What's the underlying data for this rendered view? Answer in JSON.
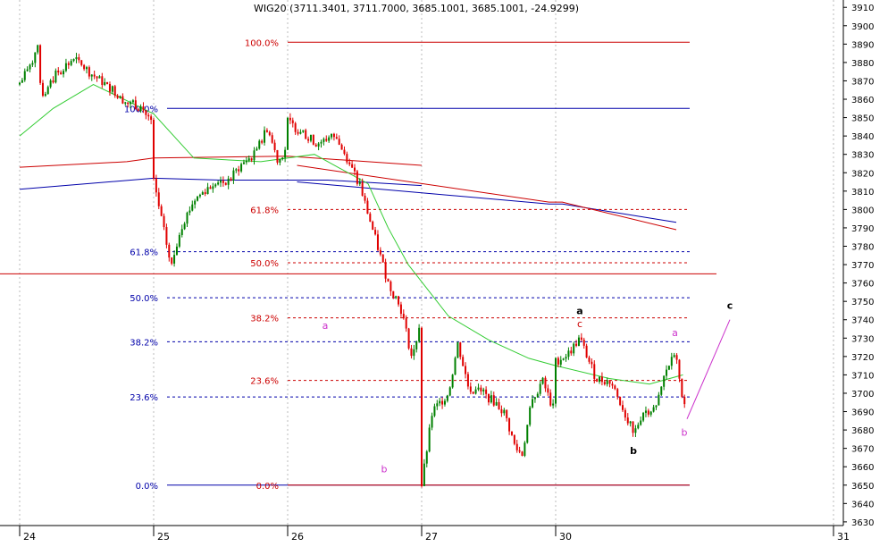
{
  "chart_data": {
    "type": "candlestick",
    "title": "WIG20 (3711.3401, 3711.7000, 3685.1001, 3685.1001, -24.9299)",
    "xlabel": "",
    "ylabel": "",
    "ylim": [
      3628,
      3914
    ],
    "y_ticks": [
      3630,
      3640,
      3650,
      3660,
      3670,
      3680,
      3690,
      3700,
      3710,
      3720,
      3730,
      3740,
      3750,
      3760,
      3770,
      3780,
      3790,
      3800,
      3810,
      3820,
      3830,
      3840,
      3850,
      3860,
      3870,
      3880,
      3890,
      3900,
      3910
    ],
    "day_labels": [
      "24",
      "25",
      "26",
      "27",
      "30",
      "31"
    ],
    "grid": true,
    "colors": {
      "up": "#008000",
      "down": "#e00000",
      "blue": "#0000aa",
      "red": "#cc0000",
      "ma": "#33cc33",
      "wave": "#cc33cc"
    },
    "moving_averages": [
      {
        "color": "#cc0000",
        "points": [
          [
            0,
            3823
          ],
          [
            0.8,
            3826
          ],
          [
            1,
            3828
          ],
          [
            2,
            3829
          ],
          [
            2.6,
            3826
          ],
          [
            3,
            3824
          ]
        ]
      },
      {
        "color": "#0000aa",
        "points": [
          [
            0,
            3811
          ],
          [
            1,
            3817
          ],
          [
            1.5,
            3816
          ],
          [
            2.3,
            3816
          ],
          [
            3,
            3813
          ]
        ]
      },
      {
        "color": "#33cc33",
        "points": [
          [
            0,
            3840
          ],
          [
            0.25,
            3855
          ],
          [
            0.55,
            3868
          ],
          [
            0.75,
            3861
          ],
          [
            1,
            3852
          ],
          [
            1.3,
            3828
          ],
          [
            1.8,
            3826
          ],
          [
            2.2,
            3830
          ],
          [
            2.6,
            3814
          ],
          [
            2.75,
            3790
          ],
          [
            2.9,
            3770
          ],
          [
            3.2,
            3742
          ],
          [
            3.5,
            3729
          ],
          [
            3.8,
            3719
          ],
          [
            4,
            3715
          ],
          [
            4.4,
            3708
          ],
          [
            4.7,
            3705
          ],
          [
            4.95,
            3710
          ]
        ]
      }
    ],
    "fib_sets": [
      {
        "color": "#0000aa",
        "x_range": [
          1.1,
          5.0
        ],
        "label_x": 1.0,
        "levels": [
          {
            "label": "100.0%",
            "price": 3855
          },
          {
            "label": "61.8%",
            "price": 3777
          },
          {
            "label": "50.0%",
            "price": 3752
          },
          {
            "label": "38.2%",
            "price": 3728
          },
          {
            "label": "23.6%",
            "price": 3698
          },
          {
            "label": "0.0%",
            "price": 3650
          }
        ]
      },
      {
        "color": "#cc0000",
        "x_range": [
          2.0,
          5.0
        ],
        "label_x": 1.95,
        "levels": [
          {
            "label": "100.0%",
            "price": 3891
          },
          {
            "label": "61.8%",
            "price": 3800
          },
          {
            "label": "50.0%",
            "price": 3771
          },
          {
            "label": "38.2%",
            "price": 3741
          },
          {
            "label": "23.6%",
            "price": 3707
          },
          {
            "label": "0.0%",
            "price": 3650
          }
        ]
      }
    ],
    "lines": [
      {
        "color": "#cc0000",
        "points": [
          [
            -1,
            3765
          ],
          [
            5.2,
            3765
          ]
        ]
      },
      {
        "color": "#0000aa",
        "points": [
          [
            2.07,
            3815
          ],
          [
            3.95,
            3803
          ],
          [
            4.05,
            3803
          ],
          [
            4.9,
            3793
          ]
        ]
      },
      {
        "color": "#cc0000",
        "points": [
          [
            2.07,
            3824
          ],
          [
            3.95,
            3804
          ],
          [
            4.05,
            3804
          ],
          [
            4.9,
            3789
          ]
        ]
      }
    ],
    "wave_line": {
      "color": "#cc33cc",
      "points": [
        [
          4.98,
          3686
        ],
        [
          5.3,
          3740
        ]
      ]
    },
    "annotations": [
      {
        "text": "a",
        "x": 2.28,
        "price": 3735,
        "color": "#cc33cc",
        "bold": false
      },
      {
        "text": "b",
        "x": 2.72,
        "price": 3657,
        "color": "#cc33cc",
        "bold": false
      },
      {
        "text": "a",
        "x": 4.18,
        "price": 3743,
        "color": "#000000",
        "bold": true
      },
      {
        "text": "c",
        "x": 4.18,
        "price": 3736,
        "color": "#cc0000",
        "bold": false
      },
      {
        "text": "b",
        "x": 4.58,
        "price": 3667,
        "color": "#000000",
        "bold": true
      },
      {
        "text": "a",
        "x": 4.89,
        "price": 3731,
        "color": "#cc33cc",
        "bold": false
      },
      {
        "text": "b",
        "x": 4.96,
        "price": 3677,
        "color": "#cc33cc",
        "bold": false
      },
      {
        "text": "c",
        "x": 5.3,
        "price": 3746,
        "color": "#000000",
        "bold": true
      }
    ],
    "price_path": [
      [
        0,
        3868
      ],
      [
        0.1,
        3882
      ],
      [
        0.13,
        3892
      ],
      [
        0.16,
        3860
      ],
      [
        0.28,
        3875
      ],
      [
        0.4,
        3882
      ],
      [
        0.55,
        3873
      ],
      [
        0.7,
        3865
      ],
      [
        0.8,
        3858
      ],
      [
        0.9,
        3856
      ],
      [
        0.99,
        3847
      ],
      [
        1.0,
        3815
      ],
      [
        1.1,
        3780
      ],
      [
        1.13,
        3768
      ],
      [
        1.2,
        3790
      ],
      [
        1.3,
        3805
      ],
      [
        1.45,
        3815
      ],
      [
        1.55,
        3815
      ],
      [
        1.65,
        3824
      ],
      [
        1.75,
        3830
      ],
      [
        1.85,
        3844
      ],
      [
        1.93,
        3826
      ],
      [
        1.99,
        3834
      ],
      [
        2.0,
        3848
      ],
      [
        2.1,
        3842
      ],
      [
        2.22,
        3836
      ],
      [
        2.35,
        3840
      ],
      [
        2.45,
        3827
      ],
      [
        2.55,
        3810
      ],
      [
        2.65,
        3785
      ],
      [
        2.75,
        3760
      ],
      [
        2.85,
        3745
      ],
      [
        2.93,
        3718
      ],
      [
        2.99,
        3740
      ],
      [
        3.0,
        3650
      ],
      [
        3.08,
        3690
      ],
      [
        3.2,
        3700
      ],
      [
        3.27,
        3727
      ],
      [
        3.35,
        3703
      ],
      [
        3.45,
        3700
      ],
      [
        3.55,
        3695
      ],
      [
        3.62,
        3689
      ],
      [
        3.7,
        3670
      ],
      [
        3.75,
        3667
      ],
      [
        3.82,
        3695
      ],
      [
        3.9,
        3707
      ],
      [
        3.99,
        3690
      ],
      [
        4.0,
        3717
      ],
      [
        4.1,
        3722
      ],
      [
        4.18,
        3730
      ],
      [
        4.3,
        3708
      ],
      [
        4.42,
        3706
      ],
      [
        4.5,
        3692
      ],
      [
        4.58,
        3677
      ],
      [
        4.65,
        3690
      ],
      [
        4.75,
        3692
      ],
      [
        4.82,
        3712
      ],
      [
        4.9,
        3722
      ],
      [
        4.93,
        3703
      ],
      [
        4.98,
        3686
      ]
    ]
  }
}
